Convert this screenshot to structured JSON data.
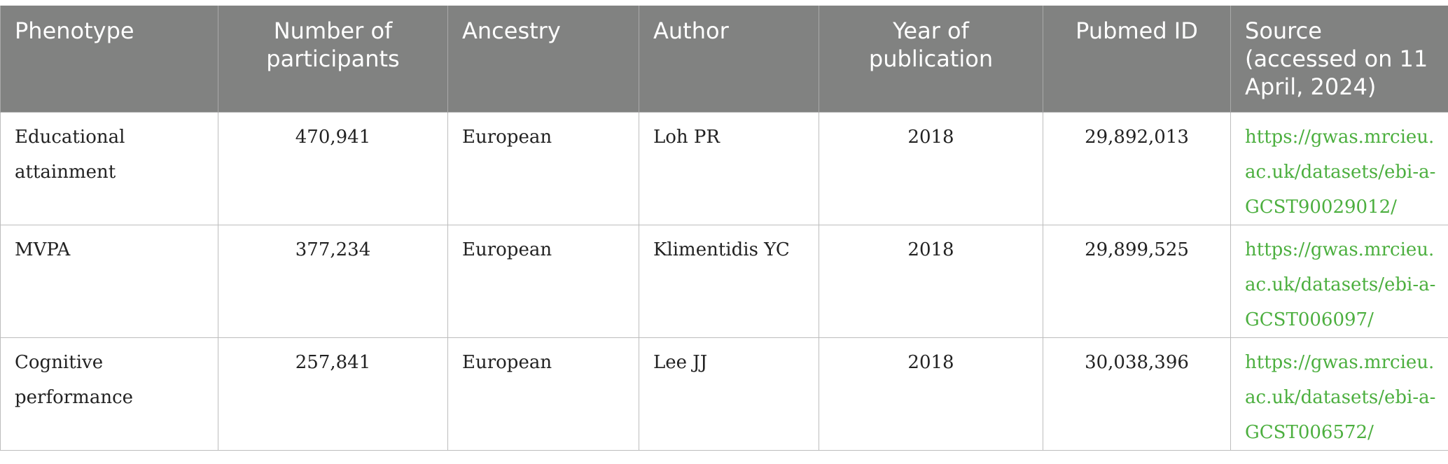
{
  "table": {
    "headers": [
      "Phenotype",
      "Number of participants",
      "Ancestry",
      "Author",
      "Year of publication",
      "Pubmed ID",
      "Source (accessed on 11 April, 2024)"
    ],
    "rows": [
      {
        "phenotype": "Educational attainment",
        "participants": "470,941",
        "ancestry": "European",
        "author": "Loh PR",
        "year": "2018",
        "pubmed_id": "29,892,013",
        "source": "https://gwas.mrcieu.ac.uk/datasets/ebi-a-GCST90029012/"
      },
      {
        "phenotype": "MVPA",
        "participants": "377,234",
        "ancestry": "European",
        "author": "Klimentidis YC",
        "year": "2018",
        "pubmed_id": "29,899,525",
        "source": "https://gwas.mrcieu.ac.uk/datasets/ebi-a-GCST006097/"
      },
      {
        "phenotype": "Cognitive performance",
        "participants": "257,841",
        "ancestry": "European",
        "author": "Lee JJ",
        "year": "2018",
        "pubmed_id": "30,038,396",
        "source": "https://gwas.mrcieu.ac.uk/datasets/ebi-a-GCST006572/"
      }
    ]
  },
  "colors": {
    "header_bg": "#818281",
    "header_text": "#ffffff",
    "link": "#4caf3f",
    "border": "#bdbdbd"
  }
}
